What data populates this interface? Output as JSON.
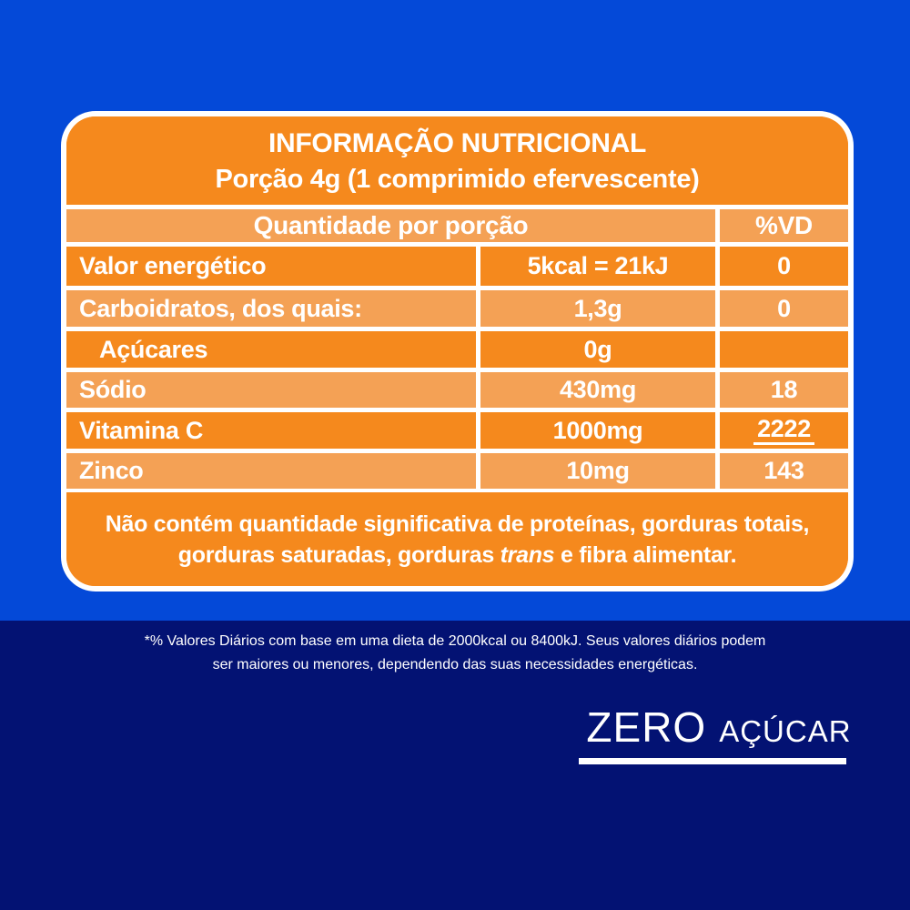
{
  "colors": {
    "blue_top": "#0449D8",
    "blue_bottom": "#031273",
    "orange": "#F5891D",
    "orange_light": "#F4A155",
    "text": "#FFFFFF"
  },
  "label": {
    "title": "INFORMAÇÃO NUTRICIONAL",
    "serving": "Porção 4g (1 comprimido efervescente)",
    "columns": {
      "quantity_header": "Quantidade por porção",
      "dv_header": "%VD"
    },
    "rows": [
      {
        "name": "Valor energético",
        "value": "5kcal = 21kJ",
        "dv": "0"
      },
      {
        "name": "Carboidratos, dos quais:",
        "value": "1,3g",
        "dv": "0"
      },
      {
        "name": "Açúcares",
        "value": "0g",
        "dv": ""
      },
      {
        "name": "Sódio",
        "value": "430mg",
        "dv": "18"
      },
      {
        "name": "Vitamina C",
        "value": "1000mg",
        "dv": "2222"
      },
      {
        "name": "Zinco",
        "value": "10mg",
        "dv": "143"
      }
    ],
    "footnote_line1": "Não contém quantidade significativa de proteínas, gorduras totais,",
    "footnote_line2_pre": "gorduras saturadas, gorduras ",
    "footnote_line2_italic": "trans",
    "footnote_line2_post": " e fibra alimentar."
  },
  "bottom": {
    "dv_note_line1": "*% Valores Diários com base em uma dieta de 2000kcal ou 8400kJ. Seus valores diários podem",
    "dv_note_line2": "ser maiores ou menores, dependendo das suas necessidades energéticas.",
    "claim_zero": "ZERO",
    "claim_sugar": "AÇÚCAR"
  }
}
